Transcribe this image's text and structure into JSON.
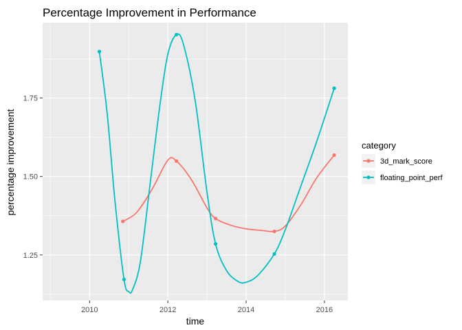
{
  "chart_data": {
    "type": "line",
    "title": "Percentage Improvement in Performance",
    "xlabel": "time",
    "ylabel": "percentage improvement",
    "xlim": [
      2008.8,
      2016.6
    ],
    "ylim": [
      1.105,
      1.99
    ],
    "x_ticks": [
      2010,
      2012,
      2014,
      2016
    ],
    "x_tick_labels": [
      "2010",
      "2012",
      "2014",
      "2016"
    ],
    "y_ticks": [
      1.25,
      1.5,
      1.75
    ],
    "y_tick_labels": [
      "1.25",
      "1.50",
      "1.75"
    ],
    "grid": true,
    "legend": {
      "title": "category",
      "position": "right"
    },
    "series": [
      {
        "name": "3d_mark_score",
        "color": "#F8766D",
        "points": [
          {
            "x": 2010.85,
            "y": 1.357
          },
          {
            "x": 2012.22,
            "y": 1.549
          },
          {
            "x": 2013.22,
            "y": 1.366
          },
          {
            "x": 2014.72,
            "y": 1.325
          },
          {
            "x": 2016.25,
            "y": 1.568
          }
        ],
        "curve": [
          [
            2010.85,
            1.357
          ],
          [
            2011.2,
            1.385
          ],
          [
            2011.6,
            1.46
          ],
          [
            2012.0,
            1.552
          ],
          [
            2012.22,
            1.549
          ],
          [
            2012.6,
            1.49
          ],
          [
            2013.0,
            1.4
          ],
          [
            2013.22,
            1.366
          ],
          [
            2013.6,
            1.345
          ],
          [
            2014.0,
            1.333
          ],
          [
            2014.4,
            1.328
          ],
          [
            2014.72,
            1.325
          ],
          [
            2015.0,
            1.342
          ],
          [
            2015.4,
            1.41
          ],
          [
            2015.8,
            1.495
          ],
          [
            2016.25,
            1.568
          ]
        ]
      },
      {
        "name": "floating_point_perf",
        "color": "#00BFC4",
        "points": [
          {
            "x": 2010.25,
            "y": 1.898
          },
          {
            "x": 2010.88,
            "y": 1.172
          },
          {
            "x": 2012.22,
            "y": 1.952
          },
          {
            "x": 2013.22,
            "y": 1.285
          },
          {
            "x": 2014.72,
            "y": 1.253
          },
          {
            "x": 2016.25,
            "y": 1.781
          }
        ],
        "curve": [
          [
            2010.25,
            1.898
          ],
          [
            2010.45,
            1.7
          ],
          [
            2010.65,
            1.42
          ],
          [
            2010.88,
            1.172
          ],
          [
            2011.0,
            1.133
          ],
          [
            2011.1,
            1.14
          ],
          [
            2011.3,
            1.23
          ],
          [
            2011.55,
            1.48
          ],
          [
            2011.8,
            1.73
          ],
          [
            2012.0,
            1.89
          ],
          [
            2012.22,
            1.952
          ],
          [
            2012.4,
            1.92
          ],
          [
            2012.7,
            1.74
          ],
          [
            2013.0,
            1.45
          ],
          [
            2013.22,
            1.285
          ],
          [
            2013.5,
            1.2
          ],
          [
            2013.8,
            1.165
          ],
          [
            2014.0,
            1.163
          ],
          [
            2014.3,
            1.185
          ],
          [
            2014.72,
            1.253
          ],
          [
            2015.0,
            1.33
          ],
          [
            2015.4,
            1.47
          ],
          [
            2015.8,
            1.61
          ],
          [
            2016.25,
            1.781
          ]
        ]
      }
    ]
  }
}
